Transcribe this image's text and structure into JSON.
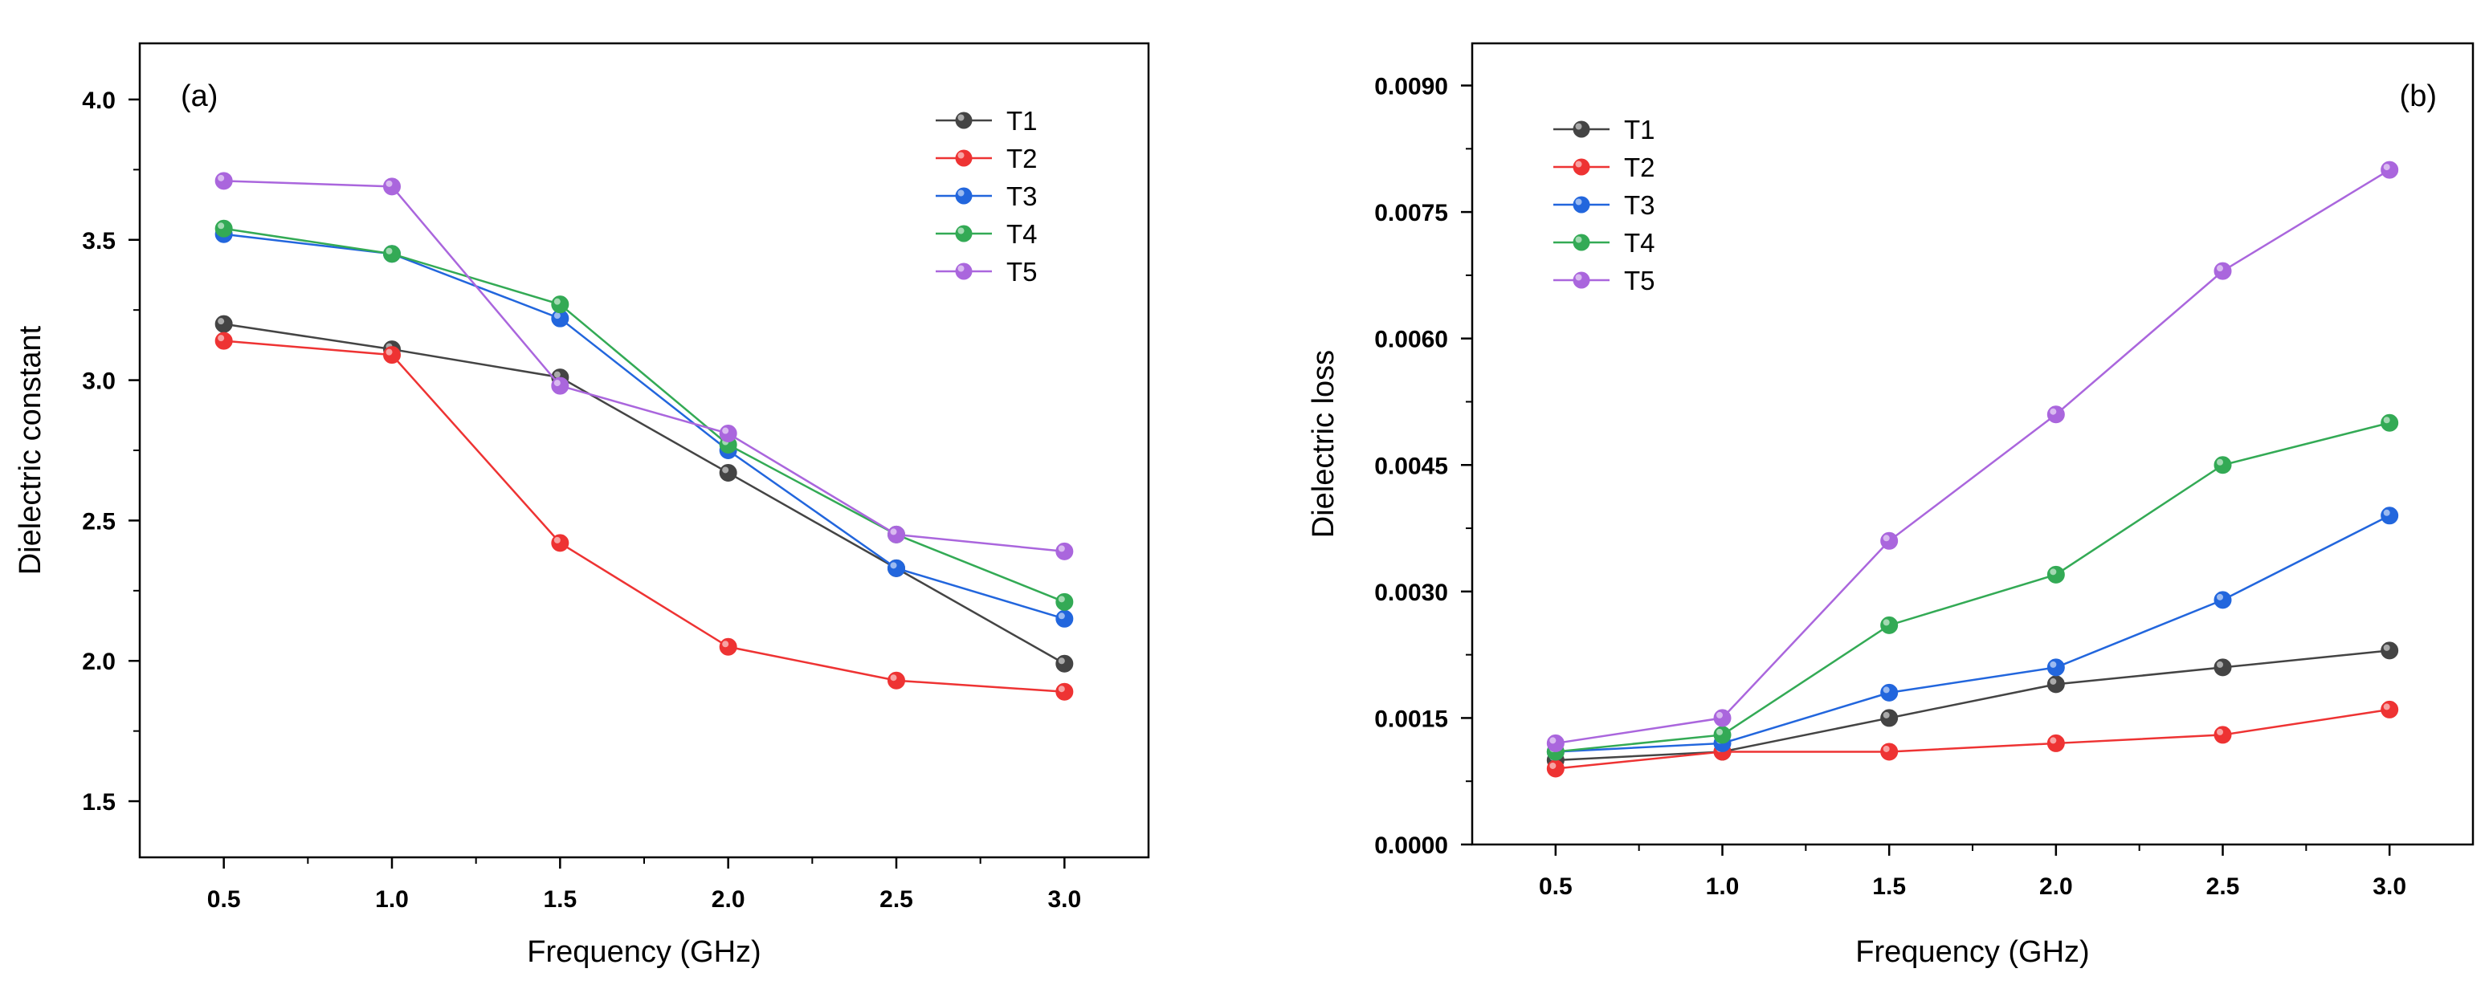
{
  "chart_data": [
    {
      "panel": "(a)",
      "type": "line",
      "xlabel": "Frequency (GHz)",
      "ylabel": "Dielectric constant",
      "xlim": [
        0.25,
        3.25
      ],
      "ylim": [
        1.3,
        4.2
      ],
      "xticks": [
        0.5,
        1.0,
        1.5,
        2.0,
        2.5,
        3.0
      ],
      "xtick_labels": [
        "0.5",
        "1.0",
        "1.5",
        "2.0",
        "2.5",
        "3.0"
      ],
      "yticks": [
        1.5,
        2.0,
        2.5,
        3.0,
        3.5,
        4.0
      ],
      "ytick_labels": [
        "1.5",
        "2.0",
        "2.5",
        "3.0",
        "3.5",
        "4.0"
      ],
      "legend_position": "top-right",
      "grid": false,
      "x": [
        0.5,
        1.0,
        1.5,
        2.0,
        2.5,
        3.0
      ],
      "series": [
        {
          "name": "T1",
          "color": "#444444",
          "values": [
            3.2,
            3.11,
            3.01,
            2.67,
            2.33,
            1.99
          ]
        },
        {
          "name": "T2",
          "color": "#ee3333",
          "values": [
            3.14,
            3.09,
            2.42,
            2.05,
            1.93,
            1.89
          ]
        },
        {
          "name": "T3",
          "color": "#2266dd",
          "values": [
            3.52,
            3.45,
            3.22,
            2.75,
            2.33,
            2.15
          ]
        },
        {
          "name": "T4",
          "color": "#33aa55",
          "values": [
            3.54,
            3.45,
            3.27,
            2.77,
            2.45,
            2.21
          ]
        },
        {
          "name": "T5",
          "color": "#aa66dd",
          "values": [
            3.71,
            3.69,
            2.98,
            2.81,
            2.45,
            2.39
          ]
        }
      ]
    },
    {
      "panel": "(b)",
      "type": "line",
      "xlabel": "Frequency (GHz)",
      "ylabel": "Dielectric loss",
      "xlim": [
        0.25,
        3.25
      ],
      "ylim": [
        0.0,
        0.0095
      ],
      "xticks": [
        0.5,
        1.0,
        1.5,
        2.0,
        2.5,
        3.0
      ],
      "xtick_labels": [
        "0.5",
        "1.0",
        "1.5",
        "2.0",
        "2.5",
        "3.0"
      ],
      "yticks": [
        0.0,
        0.0015,
        0.003,
        0.0045,
        0.006,
        0.0075,
        0.009
      ],
      "ytick_labels": [
        "0.0000",
        "0.0015",
        "0.0030",
        "0.0045",
        "0.0060",
        "0.0075",
        "0.0090"
      ],
      "legend_position": "top-left",
      "grid": false,
      "x": [
        0.5,
        1.0,
        1.5,
        2.0,
        2.5,
        3.0
      ],
      "series": [
        {
          "name": "T1",
          "color": "#444444",
          "values": [
            0.001,
            0.0011,
            0.0015,
            0.0019,
            0.0021,
            0.0023
          ]
        },
        {
          "name": "T2",
          "color": "#ee3333",
          "values": [
            0.0009,
            0.0011,
            0.0011,
            0.0012,
            0.0013,
            0.0016
          ]
        },
        {
          "name": "T3",
          "color": "#2266dd",
          "values": [
            0.0011,
            0.0012,
            0.0018,
            0.0021,
            0.0029,
            0.0039
          ]
        },
        {
          "name": "T4",
          "color": "#33aa55",
          "values": [
            0.0011,
            0.0013,
            0.0026,
            0.0032,
            0.0045,
            0.005
          ]
        },
        {
          "name": "T5",
          "color": "#aa66dd",
          "values": [
            0.0012,
            0.0015,
            0.0036,
            0.0051,
            0.0068,
            0.008
          ]
        }
      ]
    }
  ]
}
